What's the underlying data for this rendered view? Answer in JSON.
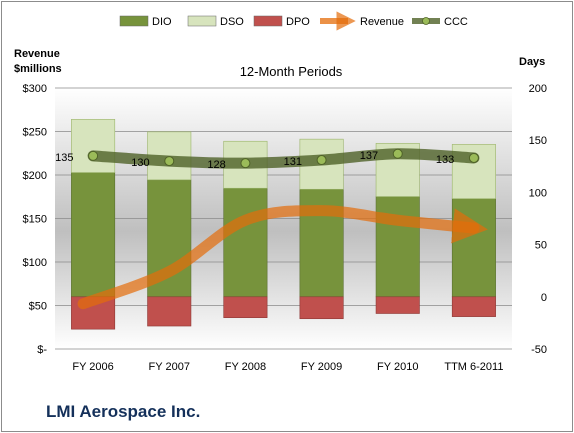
{
  "company": "LMI Aerospace Inc.",
  "chart_data": {
    "type": "bar",
    "title": "12-Month Periods",
    "left_axis_label": "Revenue\n$millions",
    "right_axis_label": "Days",
    "categories": [
      "FY 2006",
      "FY 2007",
      "FY 2008",
      "FY 2009",
      "FY 2010",
      "TTM 6-2011"
    ],
    "left_ylim": [
      0,
      300
    ],
    "left_ticks": [
      0,
      50,
      100,
      150,
      200,
      250,
      300
    ],
    "left_tick_labels": [
      "$-",
      "$50",
      "$100",
      "$150",
      "$200",
      "$250",
      "$300"
    ],
    "right_ylim": [
      -50,
      200
    ],
    "right_ticks": [
      -50,
      0,
      50,
      100,
      150,
      200
    ],
    "right_tick_labels": [
      "-50",
      "0",
      "50",
      "100",
      "150",
      "200"
    ],
    "legend_position": "top",
    "series": [
      {
        "name": "DIO",
        "axis": "right",
        "kind": "stacked-bar",
        "color": "#77933c",
        "values": [
          119,
          112,
          104,
          103,
          96,
          94
        ]
      },
      {
        "name": "DSO",
        "axis": "right",
        "kind": "stacked-bar",
        "color": "#d7e4bd",
        "values": [
          51,
          46,
          45,
          48,
          51,
          52
        ]
      },
      {
        "name": "DPO",
        "axis": "right",
        "kind": "negative-bar",
        "color": "#c0504d",
        "values": [
          -31,
          -28,
          -20,
          -21,
          -16,
          -19
        ]
      },
      {
        "name": "Revenue",
        "axis": "left",
        "kind": "line",
        "color": "#e46c0a",
        "values": [
          52,
          89,
          148,
          159,
          148,
          139
        ]
      },
      {
        "name": "CCC",
        "axis": "right",
        "kind": "line",
        "color": "#4f6228",
        "values": [
          135,
          130,
          128,
          131,
          137,
          133
        ],
        "labels": [
          "135",
          "130",
          "128",
          "131",
          "137",
          "133"
        ]
      }
    ]
  }
}
